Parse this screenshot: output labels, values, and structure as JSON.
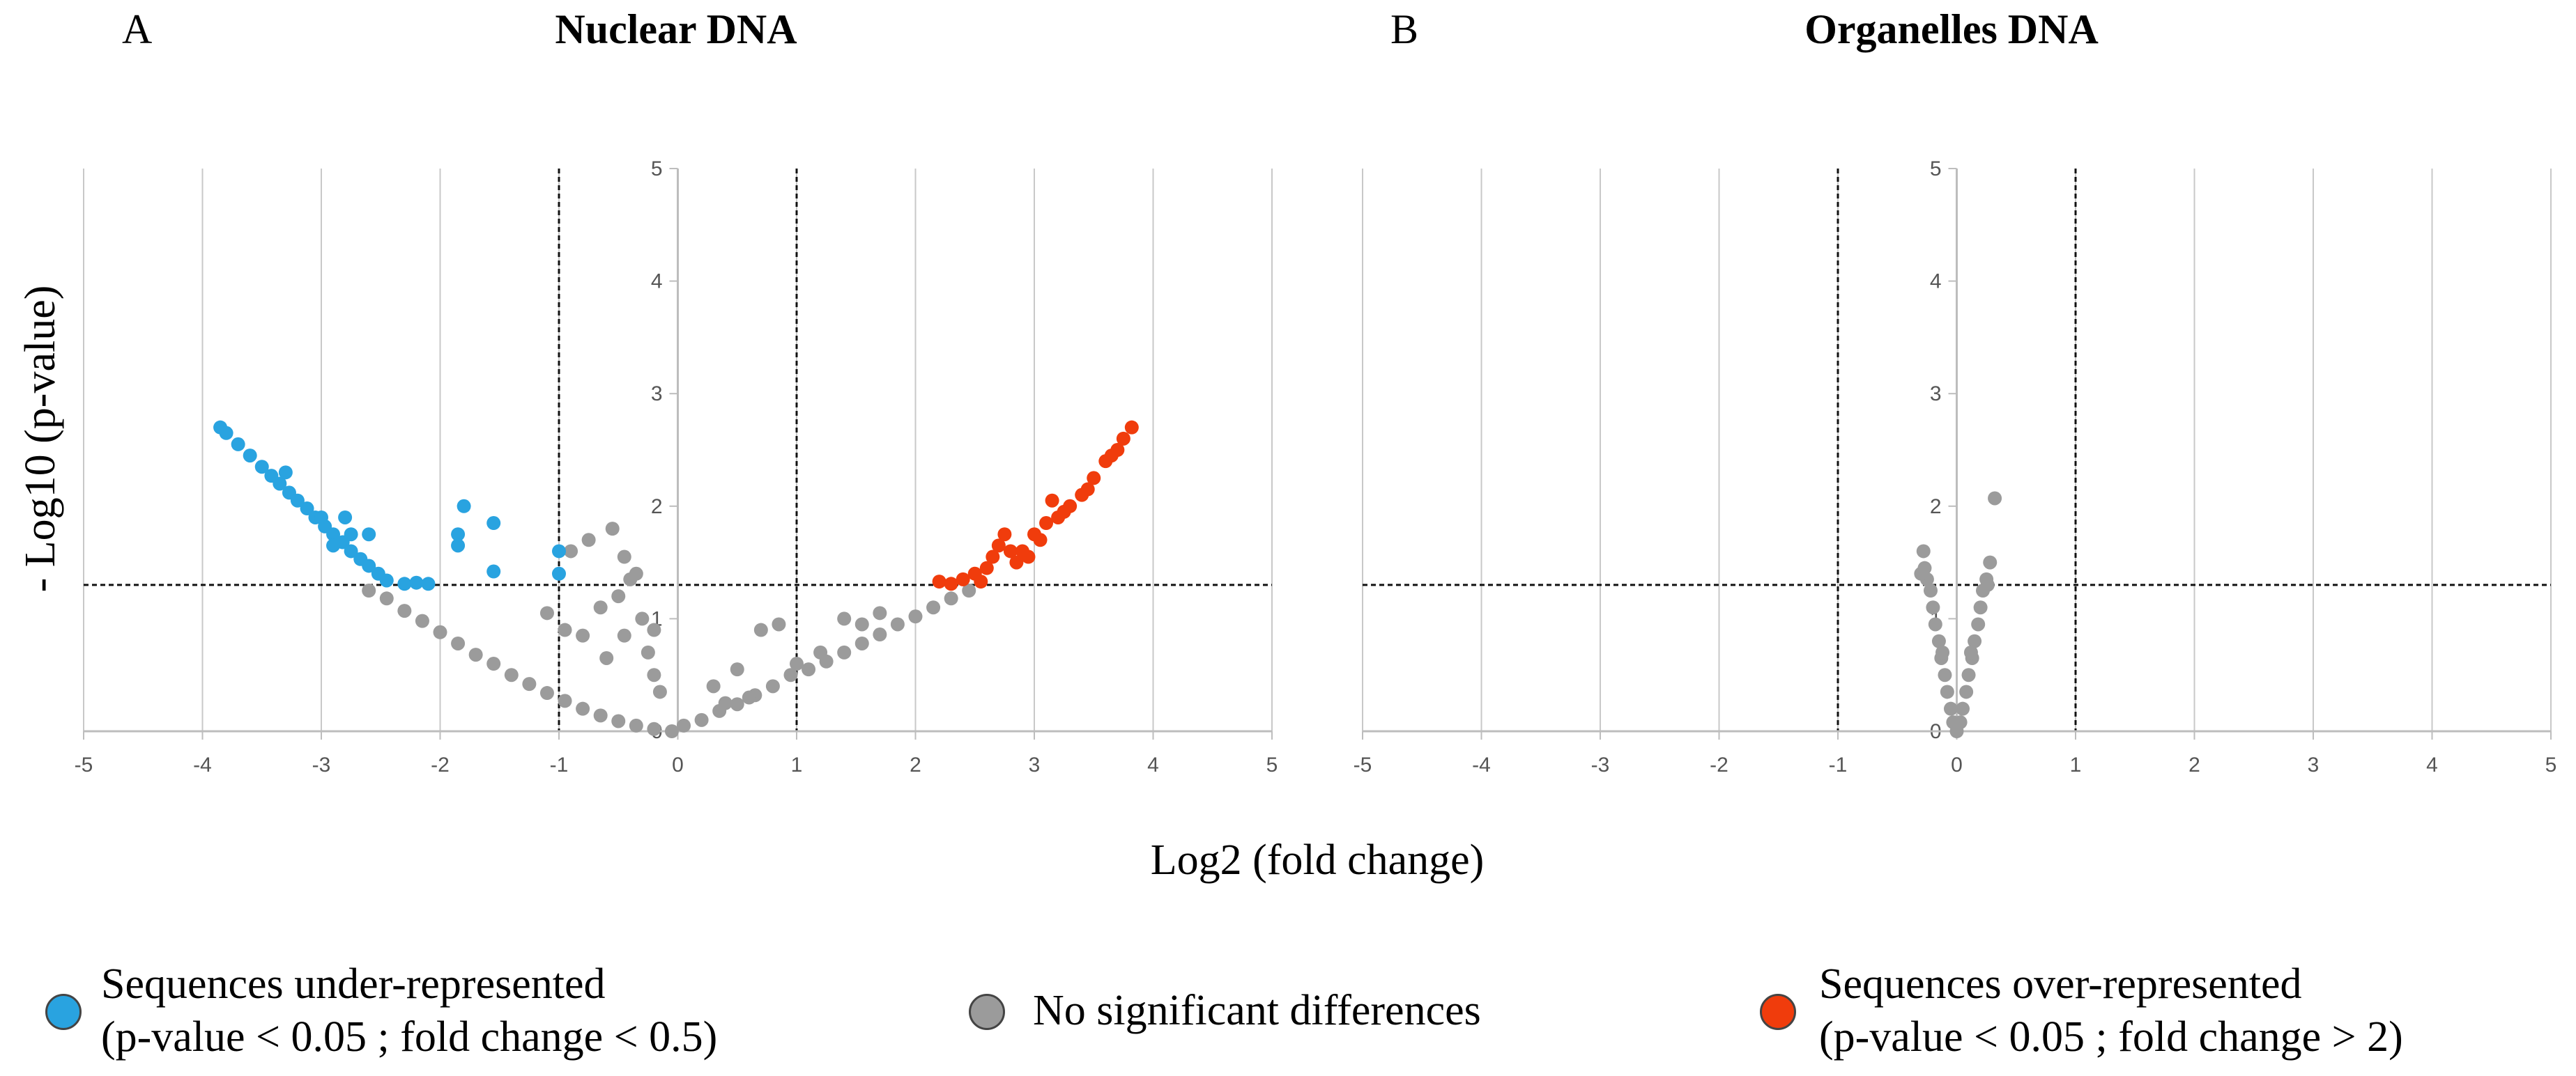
{
  "chart_data": [
    {
      "type": "scatter",
      "panel_label": "A",
      "title": "Nuclear DNA",
      "xlabel": "Log2 (fold change)",
      "ylabel": "- Log10 (p-value)",
      "xlim": [
        -5,
        5
      ],
      "ylim": [
        0,
        5
      ],
      "x_ticks": [
        "-5",
        "-4",
        "-3",
        "-2",
        "-1",
        "0",
        "1",
        "2",
        "3",
        "4",
        "5"
      ],
      "y_ticks": [
        "0",
        "1",
        "2",
        "3",
        "4",
        "5"
      ],
      "thresholds": {
        "x": [
          -1,
          1
        ],
        "y": 1.3
      },
      "series": [
        {
          "name": "Sequences under-represented",
          "color": "#29a3e0",
          "points": [
            [
              -3.85,
              2.7
            ],
            [
              -3.8,
              2.65
            ],
            [
              -3.7,
              2.55
            ],
            [
              -3.6,
              2.45
            ],
            [
              -3.5,
              2.35
            ],
            [
              -3.42,
              2.27
            ],
            [
              -3.35,
              2.2
            ],
            [
              -3.27,
              2.12
            ],
            [
              -3.2,
              2.05
            ],
            [
              -3.12,
              1.98
            ],
            [
              -3.05,
              1.9
            ],
            [
              -2.97,
              1.82
            ],
            [
              -2.9,
              1.75
            ],
            [
              -2.82,
              1.68
            ],
            [
              -2.75,
              1.6
            ],
            [
              -2.67,
              1.53
            ],
            [
              -2.6,
              1.47
            ],
            [
              -2.52,
              1.4
            ],
            [
              -2.45,
              1.34
            ],
            [
              -2.3,
              1.31
            ],
            [
              -2.2,
              1.32
            ],
            [
              -2.1,
              1.31
            ],
            [
              -3.3,
              2.3
            ],
            [
              -3.0,
              1.9
            ],
            [
              -2.8,
              1.9
            ],
            [
              -2.75,
              1.75
            ],
            [
              -2.6,
              1.75
            ],
            [
              -2.9,
              1.65
            ],
            [
              -1.8,
              2.0
            ],
            [
              -1.55,
              1.85
            ],
            [
              -1.85,
              1.75
            ],
            [
              -1.85,
              1.65
            ],
            [
              -1.55,
              1.42
            ],
            [
              -1.0,
              1.4
            ],
            [
              -1.0,
              1.6
            ]
          ]
        },
        {
          "name": "No significant differences",
          "color": "#9b9b9b",
          "points": [
            [
              -2.6,
              1.25
            ],
            [
              -2.45,
              1.18
            ],
            [
              -2.3,
              1.07
            ],
            [
              -2.15,
              0.98
            ],
            [
              -2.0,
              0.88
            ],
            [
              -1.85,
              0.78
            ],
            [
              -1.7,
              0.68
            ],
            [
              -1.55,
              0.6
            ],
            [
              -1.4,
              0.5
            ],
            [
              -1.25,
              0.42
            ],
            [
              -1.1,
              0.34
            ],
            [
              -0.95,
              0.27
            ],
            [
              -0.8,
              0.2
            ],
            [
              -0.65,
              0.14
            ],
            [
              -0.5,
              0.09
            ],
            [
              -0.35,
              0.05
            ],
            [
              -0.2,
              0.02
            ],
            [
              -0.05,
              0.0
            ],
            [
              -0.9,
              1.6
            ],
            [
              -0.75,
              1.7
            ],
            [
              -0.55,
              1.8
            ],
            [
              -0.45,
              1.55
            ],
            [
              -0.35,
              1.4
            ],
            [
              -0.5,
              1.2
            ],
            [
              -0.65,
              1.1
            ],
            [
              -0.3,
              1.0
            ],
            [
              -0.45,
              0.85
            ],
            [
              -0.25,
              0.7
            ],
            [
              -0.2,
              0.5
            ],
            [
              -0.15,
              0.35
            ],
            [
              -0.8,
              0.85
            ],
            [
              -0.6,
              0.65
            ],
            [
              -1.1,
              1.05
            ],
            [
              -0.95,
              0.9
            ],
            [
              -0.4,
              1.35
            ],
            [
              -0.2,
              0.9
            ],
            [
              0.05,
              0.05
            ],
            [
              0.2,
              0.1
            ],
            [
              0.35,
              0.18
            ],
            [
              0.5,
              0.24
            ],
            [
              0.65,
              0.32
            ],
            [
              0.8,
              0.4
            ],
            [
              0.95,
              0.5
            ],
            [
              1.1,
              0.55
            ],
            [
              1.25,
              0.62
            ],
            [
              1.4,
              0.7
            ],
            [
              1.55,
              0.78
            ],
            [
              1.7,
              0.86
            ],
            [
              1.85,
              0.95
            ],
            [
              2.0,
              1.02
            ],
            [
              2.15,
              1.1
            ],
            [
              2.3,
              1.18
            ],
            [
              2.45,
              1.25
            ],
            [
              0.7,
              0.9
            ],
            [
              0.85,
              0.95
            ],
            [
              0.3,
              0.4
            ],
            [
              0.5,
              0.55
            ],
            [
              1.4,
              1.0
            ],
            [
              1.55,
              0.95
            ],
            [
              1.7,
              1.05
            ],
            [
              1.0,
              0.6
            ],
            [
              0.6,
              0.3
            ],
            [
              0.4,
              0.25
            ],
            [
              1.2,
              0.7
            ]
          ]
        },
        {
          "name": "Sequences over-represented",
          "color": "#f03c0c",
          "points": [
            [
              2.2,
              1.33
            ],
            [
              2.3,
              1.31
            ],
            [
              2.4,
              1.35
            ],
            [
              2.5,
              1.4
            ],
            [
              2.6,
              1.45
            ],
            [
              2.65,
              1.55
            ],
            [
              2.7,
              1.65
            ],
            [
              2.75,
              1.75
            ],
            [
              2.8,
              1.6
            ],
            [
              2.9,
              1.6
            ],
            [
              3.0,
              1.75
            ],
            [
              3.1,
              1.85
            ],
            [
              3.15,
              2.05
            ],
            [
              3.2,
              1.9
            ],
            [
              3.3,
              2.0
            ],
            [
              3.4,
              2.1
            ],
            [
              3.5,
              2.25
            ],
            [
              3.6,
              2.4
            ],
            [
              3.7,
              2.5
            ],
            [
              3.75,
              2.6
            ],
            [
              3.82,
              2.7
            ],
            [
              2.55,
              1.33
            ],
            [
              2.85,
              1.5
            ],
            [
              2.95,
              1.55
            ],
            [
              3.05,
              1.7
            ],
            [
              3.25,
              1.95
            ],
            [
              3.45,
              2.15
            ],
            [
              3.65,
              2.45
            ]
          ]
        }
      ]
    },
    {
      "type": "scatter",
      "panel_label": "B",
      "title": "Organelles DNA",
      "xlim": [
        -5,
        5
      ],
      "ylim": [
        0,
        5
      ],
      "x_ticks": [
        "-5",
        "-4",
        "-3",
        "-2",
        "-1",
        "0",
        "1",
        "2",
        "3",
        "4",
        "5"
      ],
      "y_ticks": [
        "0",
        "1",
        "2",
        "3",
        "4",
        "5"
      ],
      "thresholds": {
        "x": [
          -1,
          1
        ],
        "y": 1.3
      },
      "series": [
        {
          "name": "No significant differences",
          "color": "#9b9b9b",
          "points": [
            [
              -0.28,
              1.6
            ],
            [
              -0.27,
              1.45
            ],
            [
              -0.25,
              1.35
            ],
            [
              -0.22,
              1.25
            ],
            [
              -0.2,
              1.1
            ],
            [
              -0.18,
              0.95
            ],
            [
              -0.15,
              0.8
            ],
            [
              -0.13,
              0.65
            ],
            [
              -0.1,
              0.5
            ],
            [
              -0.08,
              0.35
            ],
            [
              -0.05,
              0.2
            ],
            [
              -0.03,
              0.08
            ],
            [
              0.0,
              0.0
            ],
            [
              0.03,
              0.08
            ],
            [
              0.05,
              0.2
            ],
            [
              0.08,
              0.35
            ],
            [
              0.1,
              0.5
            ],
            [
              0.13,
              0.65
            ],
            [
              0.15,
              0.8
            ],
            [
              0.18,
              0.95
            ],
            [
              0.2,
              1.1
            ],
            [
              0.22,
              1.25
            ],
            [
              0.25,
              1.35
            ],
            [
              0.28,
              1.5
            ],
            [
              0.32,
              2.07
            ],
            [
              -0.3,
              1.4
            ],
            [
              0.26,
              1.3
            ],
            [
              -0.12,
              0.7
            ],
            [
              0.12,
              0.7
            ]
          ]
        }
      ]
    }
  ],
  "legend": [
    {
      "color": "#29a3e0",
      "line1": "Sequences under-represented",
      "line2": "(p-value < 0.05 ; fold change < 0.5)"
    },
    {
      "color": "#9b9b9b",
      "line1": "No significant differences"
    },
    {
      "color": "#f03c0c",
      "line1": "Sequences over-represented",
      "line2": "(p-value < 0.05 ; fold change > 2)"
    }
  ]
}
